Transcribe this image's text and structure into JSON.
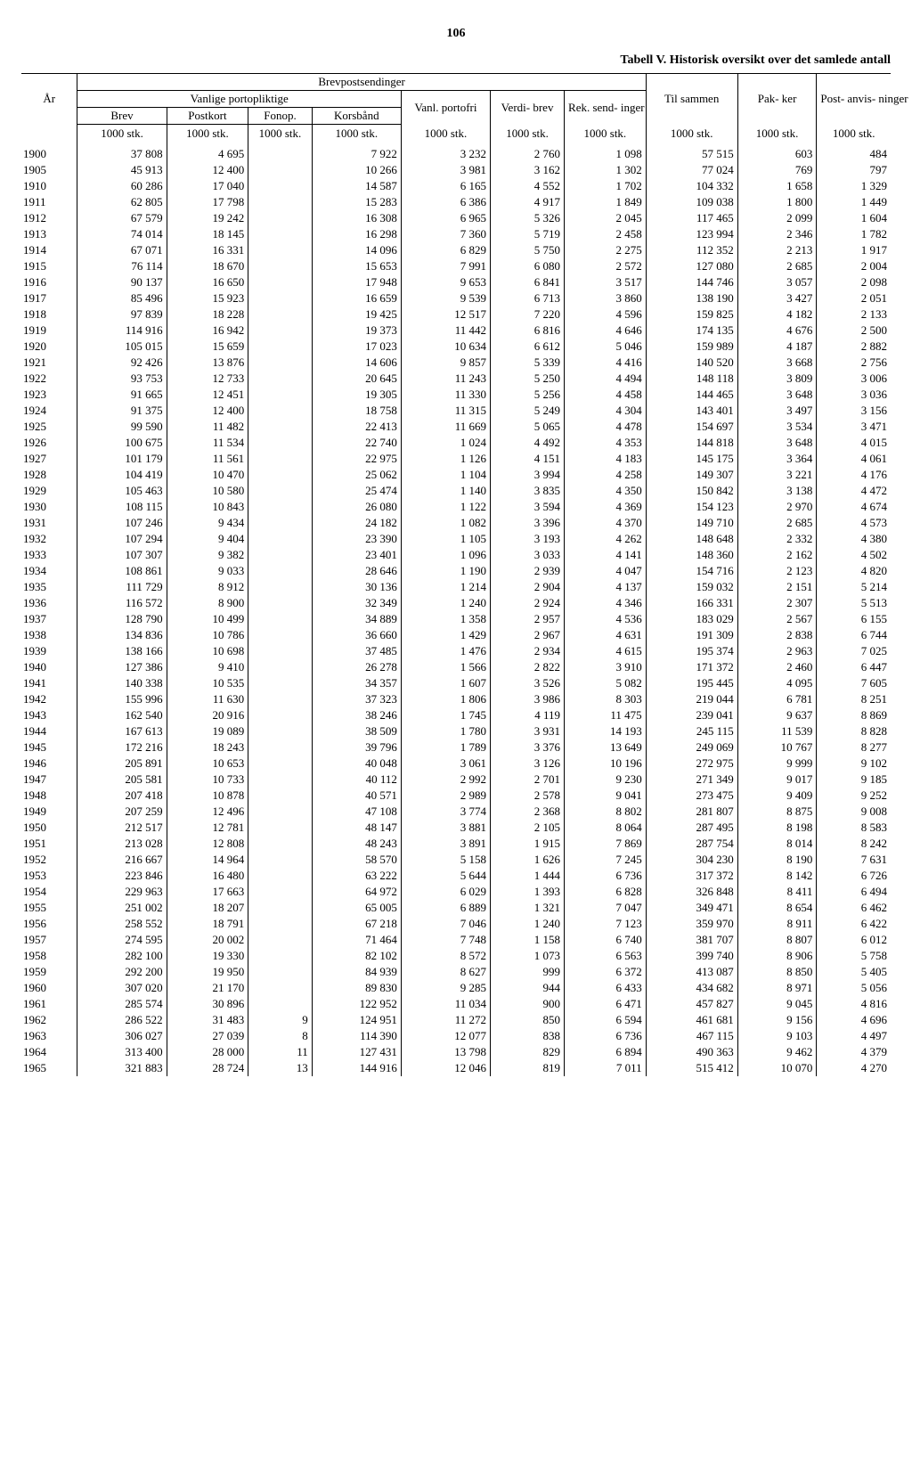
{
  "page_number": "106",
  "title": "Tabell V. Historisk oversikt over det samlede antall",
  "header": {
    "brevpost": "Brevpostsendinger",
    "ar": "År",
    "vanlige_portopliktige": "Vanlige portopliktige",
    "vanl_portofri": "Vanl. portofri",
    "verdi_brev": "Verdi- brev",
    "rek_sendinger": "Rek. send- inger",
    "til_sammen": "Til sammen",
    "pakker": "Pak- ker",
    "post_anvisninger": "Post- anvis- ninger",
    "brev": "Brev",
    "postkort": "Postkort",
    "fonop": "Fonop.",
    "korsband": "Korsbånd",
    "unit": "1000 stk."
  },
  "rows": [
    [
      "1900",
      "37 808",
      "4 695",
      "",
      "7 922",
      "3 232",
      "2 760",
      "1 098",
      "57 515",
      "603",
      "484"
    ],
    [
      "1905",
      "45 913",
      "12 400",
      "",
      "10 266",
      "3 981",
      "3 162",
      "1 302",
      "77 024",
      "769",
      "797"
    ],
    [
      "1910",
      "60 286",
      "17 040",
      "",
      "14 587",
      "6 165",
      "4 552",
      "1 702",
      "104 332",
      "1 658",
      "1 329"
    ],
    [
      "1911",
      "62 805",
      "17 798",
      "",
      "15 283",
      "6 386",
      "4 917",
      "1 849",
      "109 038",
      "1 800",
      "1 449"
    ],
    [
      "1912",
      "67 579",
      "19 242",
      "",
      "16 308",
      "6 965",
      "5 326",
      "2 045",
      "117 465",
      "2 099",
      "1 604"
    ],
    [
      "1913",
      "74 014",
      "18 145",
      "",
      "16 298",
      "7 360",
      "5 719",
      "2 458",
      "123 994",
      "2 346",
      "1 782"
    ],
    [
      "1914",
      "67 071",
      "16 331",
      "",
      "14 096",
      "6 829",
      "5 750",
      "2 275",
      "112 352",
      "2 213",
      "1 917"
    ],
    [
      "1915",
      "76 114",
      "18 670",
      "",
      "15 653",
      "7 991",
      "6 080",
      "2 572",
      "127 080",
      "2 685",
      "2 004"
    ],
    [
      "1916",
      "90 137",
      "16 650",
      "",
      "17 948",
      "9 653",
      "6 841",
      "3 517",
      "144 746",
      "3 057",
      "2 098"
    ],
    [
      "1917",
      "85 496",
      "15 923",
      "",
      "16 659",
      "9 539",
      "6 713",
      "3 860",
      "138 190",
      "3 427",
      "2 051"
    ],
    [
      "1918",
      "97 839",
      "18 228",
      "",
      "19 425",
      "12 517",
      "7 220",
      "4 596",
      "159 825",
      "4 182",
      "2 133"
    ],
    [
      "1919",
      "114 916",
      "16 942",
      "",
      "19 373",
      "11 442",
      "6 816",
      "4 646",
      "174 135",
      "4 676",
      "2 500"
    ],
    [
      "1920",
      "105 015",
      "15 659",
      "",
      "17 023",
      "10 634",
      "6 612",
      "5 046",
      "159 989",
      "4 187",
      "2 882"
    ],
    [
      "1921",
      "92 426",
      "13 876",
      "",
      "14 606",
      "9 857",
      "5 339",
      "4 416",
      "140 520",
      "3 668",
      "2 756"
    ],
    [
      "1922",
      "93 753",
      "12 733",
      "",
      "20 645",
      "11 243",
      "5 250",
      "4 494",
      "148 118",
      "3 809",
      "3 006"
    ],
    [
      "1923",
      "91 665",
      "12 451",
      "",
      "19 305",
      "11 330",
      "5 256",
      "4 458",
      "144 465",
      "3 648",
      "3 036"
    ],
    [
      "1924",
      "91 375",
      "12 400",
      "",
      "18 758",
      "11 315",
      "5 249",
      "4 304",
      "143 401",
      "3 497",
      "3 156"
    ],
    [
      "1925",
      "99 590",
      "11 482",
      "",
      "22 413",
      "11 669",
      "5 065",
      "4 478",
      "154 697",
      "3 534",
      "3 471"
    ],
    [
      "1926",
      "100 675",
      "11 534",
      "",
      "22 740",
      "1 024",
      "4 492",
      "4 353",
      "144 818",
      "3 648",
      "4 015"
    ],
    [
      "1927",
      "101 179",
      "11 561",
      "",
      "22 975",
      "1 126",
      "4 151",
      "4 183",
      "145 175",
      "3 364",
      "4 061"
    ],
    [
      "1928",
      "104 419",
      "10 470",
      "",
      "25 062",
      "1 104",
      "3 994",
      "4 258",
      "149 307",
      "3 221",
      "4 176"
    ],
    [
      "1929",
      "105 463",
      "10 580",
      "",
      "25 474",
      "1 140",
      "3 835",
      "4 350",
      "150 842",
      "3 138",
      "4 472"
    ],
    [
      "1930",
      "108 115",
      "10 843",
      "",
      "26 080",
      "1 122",
      "3 594",
      "4 369",
      "154 123",
      "2 970",
      "4 674"
    ],
    [
      "1931",
      "107 246",
      "9 434",
      "",
      "24 182",
      "1 082",
      "3 396",
      "4 370",
      "149 710",
      "2 685",
      "4 573"
    ],
    [
      "1932",
      "107 294",
      "9 404",
      "",
      "23 390",
      "1 105",
      "3 193",
      "4 262",
      "148 648",
      "2 332",
      "4 380"
    ],
    [
      "1933",
      "107 307",
      "9 382",
      "",
      "23 401",
      "1 096",
      "3 033",
      "4 141",
      "148 360",
      "2 162",
      "4 502"
    ],
    [
      "1934",
      "108 861",
      "9 033",
      "",
      "28 646",
      "1 190",
      "2 939",
      "4 047",
      "154 716",
      "2 123",
      "4 820"
    ],
    [
      "1935",
      "111 729",
      "8 912",
      "",
      "30 136",
      "1 214",
      "2 904",
      "4 137",
      "159 032",
      "2 151",
      "5 214"
    ],
    [
      "1936",
      "116 572",
      "8 900",
      "",
      "32 349",
      "1 240",
      "2 924",
      "4 346",
      "166 331",
      "2 307",
      "5 513"
    ],
    [
      "1937",
      "128 790",
      "10 499",
      "",
      "34 889",
      "1 358",
      "2 957",
      "4 536",
      "183 029",
      "2 567",
      "6 155"
    ],
    [
      "1938",
      "134 836",
      "10 786",
      "",
      "36 660",
      "1 429",
      "2 967",
      "4 631",
      "191 309",
      "2 838",
      "6 744"
    ],
    [
      "1939",
      "138 166",
      "10 698",
      "",
      "37 485",
      "1 476",
      "2 934",
      "4 615",
      "195 374",
      "2 963",
      "7 025"
    ],
    [
      "1940",
      "127 386",
      "9 410",
      "",
      "26 278",
      "1 566",
      "2 822",
      "3 910",
      "171 372",
      "2 460",
      "6 447"
    ],
    [
      "1941",
      "140 338",
      "10 535",
      "",
      "34 357",
      "1 607",
      "3 526",
      "5 082",
      "195 445",
      "4 095",
      "7 605"
    ],
    [
      "1942",
      "155 996",
      "11 630",
      "",
      "37 323",
      "1 806",
      "3 986",
      "8 303",
      "219 044",
      "6 781",
      "8 251"
    ],
    [
      "1943",
      "162 540",
      "20 916",
      "",
      "38 246",
      "1 745",
      "4 119",
      "11 475",
      "239 041",
      "9 637",
      "8 869"
    ],
    [
      "1944",
      "167 613",
      "19 089",
      "",
      "38 509",
      "1 780",
      "3 931",
      "14 193",
      "245 115",
      "11 539",
      "8 828"
    ],
    [
      "1945",
      "172 216",
      "18 243",
      "",
      "39 796",
      "1 789",
      "3 376",
      "13 649",
      "249 069",
      "10 767",
      "8 277"
    ],
    [
      "1946",
      "205 891",
      "10 653",
      "",
      "40 048",
      "3 061",
      "3 126",
      "10 196",
      "272 975",
      "9 999",
      "9 102"
    ],
    [
      "1947",
      "205 581",
      "10 733",
      "",
      "40 112",
      "2 992",
      "2 701",
      "9 230",
      "271 349",
      "9 017",
      "9 185"
    ],
    [
      "1948",
      "207 418",
      "10 878",
      "",
      "40 571",
      "2 989",
      "2 578",
      "9 041",
      "273 475",
      "9 409",
      "9 252"
    ],
    [
      "1949",
      "207 259",
      "12 496",
      "",
      "47 108",
      "3 774",
      "2 368",
      "8 802",
      "281 807",
      "8 875",
      "9 008"
    ],
    [
      "1950",
      "212 517",
      "12 781",
      "",
      "48 147",
      "3 881",
      "2 105",
      "8 064",
      "287 495",
      "8 198",
      "8 583"
    ],
    [
      "1951",
      "213 028",
      "12 808",
      "",
      "48 243",
      "3 891",
      "1 915",
      "7 869",
      "287 754",
      "8 014",
      "8 242"
    ],
    [
      "1952",
      "216 667",
      "14 964",
      "",
      "58 570",
      "5 158",
      "1 626",
      "7 245",
      "304 230",
      "8 190",
      "7 631"
    ],
    [
      "1953",
      "223 846",
      "16 480",
      "",
      "63 222",
      "5 644",
      "1 444",
      "6 736",
      "317 372",
      "8 142",
      "6 726"
    ],
    [
      "1954",
      "229 963",
      "17 663",
      "",
      "64 972",
      "6 029",
      "1 393",
      "6 828",
      "326 848",
      "8 411",
      "6 494"
    ],
    [
      "1955",
      "251 002",
      "18 207",
      "",
      "65 005",
      "6 889",
      "1 321",
      "7 047",
      "349 471",
      "8 654",
      "6 462"
    ],
    [
      "1956",
      "258 552",
      "18 791",
      "",
      "67 218",
      "7 046",
      "1 240",
      "7 123",
      "359 970",
      "8 911",
      "6 422"
    ],
    [
      "1957",
      "274 595",
      "20 002",
      "",
      "71 464",
      "7 748",
      "1 158",
      "6 740",
      "381 707",
      "8 807",
      "6 012"
    ],
    [
      "1958",
      "282 100",
      "19 330",
      "",
      "82 102",
      "8 572",
      "1 073",
      "6 563",
      "399 740",
      "8 906",
      "5 758"
    ],
    [
      "1959",
      "292 200",
      "19 950",
      "",
      "84 939",
      "8 627",
      "999",
      "6 372",
      "413 087",
      "8 850",
      "5 405"
    ],
    [
      "1960",
      "307 020",
      "21 170",
      "",
      "89 830",
      "9 285",
      "944",
      "6 433",
      "434 682",
      "8 971",
      "5 056"
    ],
    [
      "1961",
      "285 574",
      "30 896",
      "",
      "122 952",
      "11 034",
      "900",
      "6 471",
      "457 827",
      "9 045",
      "4 816"
    ],
    [
      "1962",
      "286 522",
      "31 483",
      "9",
      "124 951",
      "11 272",
      "850",
      "6 594",
      "461 681",
      "9 156",
      "4 696"
    ],
    [
      "1963",
      "306 027",
      "27 039",
      "8",
      "114 390",
      "12 077",
      "838",
      "6 736",
      "467 115",
      "9 103",
      "4 497"
    ],
    [
      "1964",
      "313 400",
      "28 000",
      "11",
      "127 431",
      "13 798",
      "829",
      "6 894",
      "490 363",
      "9 462",
      "4 379"
    ],
    [
      "1965",
      "321 883",
      "28 724",
      "13",
      "144 916",
      "12 046",
      "819",
      "7 011",
      "515 412",
      "10 070",
      "4 270"
    ]
  ]
}
